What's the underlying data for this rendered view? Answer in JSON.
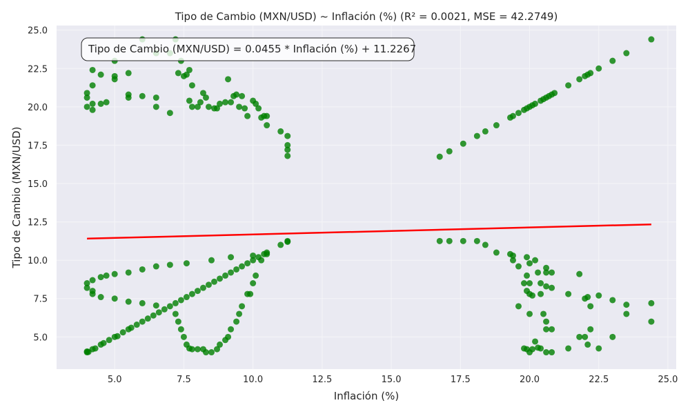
{
  "chart_data": {
    "type": "scatter",
    "title": "Tipo de Cambio (MXN/USD) ~ Inflación (%) (R² = 0.0021, MSE = 42.2749)",
    "xlabel": "Inflación (%)",
    "ylabel": "Tipo de Cambio (MXN/USD)",
    "xlim": [
      2.9,
      25.3
    ],
    "ylim": [
      2.9,
      25.3
    ],
    "xticks": [
      "5.0",
      "7.5",
      "10.0",
      "12.5",
      "15.0",
      "17.5",
      "20.0",
      "22.5",
      "25.0"
    ],
    "yticks": [
      "5.0",
      "7.5",
      "10.0",
      "12.5",
      "15.0",
      "17.5",
      "20.0",
      "22.5",
      "25.0"
    ],
    "grid": true,
    "annotation": "Tipo de Cambio (MXN/USD) = 0.0455 * Inflación (%) + 11.2267",
    "colors": {
      "points": "#008000",
      "fit_line": "#ff0000",
      "background": "#eaeaf2",
      "grid": "#f5f5f8"
    },
    "regression": {
      "slope": 0.0455,
      "intercept": 11.2267,
      "x_range": [
        4.0,
        24.4
      ]
    },
    "points": [
      [
        4.0,
        4.0
      ],
      [
        4.05,
        4.02
      ],
      [
        4.0,
        4.05
      ],
      [
        4.2,
        4.2
      ],
      [
        4.3,
        4.25
      ],
      [
        4.5,
        4.5
      ],
      [
        4.6,
        4.6
      ],
      [
        4.8,
        4.8
      ],
      [
        5.0,
        5.0
      ],
      [
        5.1,
        5.05
      ],
      [
        5.3,
        5.3
      ],
      [
        5.5,
        5.5
      ],
      [
        5.6,
        5.6
      ],
      [
        5.8,
        5.8
      ],
      [
        6.0,
        6.0
      ],
      [
        6.2,
        6.2
      ],
      [
        6.4,
        6.4
      ],
      [
        6.6,
        6.6
      ],
      [
        6.8,
        6.8
      ],
      [
        7.0,
        7.0
      ],
      [
        7.2,
        7.2
      ],
      [
        7.4,
        7.4
      ],
      [
        7.6,
        7.6
      ],
      [
        7.8,
        7.8
      ],
      [
        8.0,
        8.0
      ],
      [
        8.2,
        8.2
      ],
      [
        8.4,
        8.4
      ],
      [
        8.6,
        8.6
      ],
      [
        8.8,
        8.8
      ],
      [
        9.0,
        9.0
      ],
      [
        9.2,
        9.2
      ],
      [
        9.4,
        9.4
      ],
      [
        9.6,
        9.6
      ],
      [
        9.8,
        9.8
      ],
      [
        10.0,
        10.0
      ],
      [
        10.2,
        10.2
      ],
      [
        10.4,
        10.4
      ],
      [
        10.5,
        10.5
      ],
      [
        11.0,
        11.0
      ],
      [
        11.25,
        11.25
      ],
      [
        11.25,
        11.2
      ],
      [
        4.0,
        8.2
      ],
      [
        4.0,
        8.5
      ],
      [
        4.2,
        8.7
      ],
      [
        4.5,
        8.9
      ],
      [
        4.7,
        9.0
      ],
      [
        5.0,
        9.1
      ],
      [
        5.5,
        9.2
      ],
      [
        6.0,
        9.4
      ],
      [
        6.5,
        9.6
      ],
      [
        7.0,
        9.7
      ],
      [
        7.6,
        9.8
      ],
      [
        8.5,
        10.0
      ],
      [
        9.2,
        10.2
      ],
      [
        10.0,
        10.3
      ],
      [
        10.5,
        10.4
      ],
      [
        4.2,
        8.0
      ],
      [
        4.2,
        7.8
      ],
      [
        4.5,
        7.6
      ],
      [
        5.0,
        7.5
      ],
      [
        5.5,
        7.3
      ],
      [
        6.0,
        7.2
      ],
      [
        6.5,
        7.05
      ],
      [
        7.2,
        6.5
      ],
      [
        7.3,
        6.0
      ],
      [
        7.4,
        5.5
      ],
      [
        7.5,
        5.0
      ],
      [
        7.6,
        4.5
      ],
      [
        7.7,
        4.25
      ],
      [
        7.8,
        4.2
      ],
      [
        8.0,
        4.2
      ],
      [
        8.2,
        4.2
      ],
      [
        8.3,
        4.0
      ],
      [
        8.5,
        4.0
      ],
      [
        8.7,
        4.2
      ],
      [
        8.8,
        4.5
      ],
      [
        9.0,
        4.8
      ],
      [
        9.1,
        5.0
      ],
      [
        9.2,
        5.5
      ],
      [
        9.4,
        6.0
      ],
      [
        9.5,
        6.5
      ],
      [
        9.6,
        7.0
      ],
      [
        9.8,
        7.8
      ],
      [
        9.9,
        7.8
      ],
      [
        10.0,
        8.5
      ],
      [
        10.1,
        9.0
      ],
      [
        10.3,
        10.0
      ],
      [
        4.0,
        20.0
      ],
      [
        4.0,
        20.6
      ],
      [
        4.0,
        20.9
      ],
      [
        4.2,
        19.8
      ],
      [
        4.2,
        20.2
      ],
      [
        4.2,
        21.4
      ],
      [
        4.2,
        22.4
      ],
      [
        4.5,
        20.2
      ],
      [
        4.5,
        22.1
      ],
      [
        4.7,
        20.3
      ],
      [
        5.0,
        21.8
      ],
      [
        5.0,
        22.0
      ],
      [
        5.0,
        23.0
      ],
      [
        5.5,
        20.6
      ],
      [
        5.5,
        20.8
      ],
      [
        5.5,
        22.2
      ],
      [
        6.0,
        20.7
      ],
      [
        6.0,
        24.4
      ],
      [
        6.5,
        23.5
      ],
      [
        6.5,
        20.6
      ],
      [
        6.5,
        20.0
      ],
      [
        7.0,
        19.6
      ],
      [
        7.0,
        23.5
      ],
      [
        7.2,
        24.4
      ],
      [
        7.3,
        22.2
      ],
      [
        7.4,
        23.0
      ],
      [
        7.5,
        22.0
      ],
      [
        7.6,
        22.1
      ],
      [
        7.7,
        22.4
      ],
      [
        7.8,
        21.4
      ],
      [
        7.7,
        20.4
      ],
      [
        7.8,
        20.0
      ],
      [
        8.0,
        20.0
      ],
      [
        8.1,
        20.3
      ],
      [
        8.2,
        20.9
      ],
      [
        8.3,
        20.6
      ],
      [
        8.4,
        20.0
      ],
      [
        8.6,
        19.9
      ],
      [
        8.7,
        19.9
      ],
      [
        8.8,
        20.2
      ],
      [
        9.0,
        20.3
      ],
      [
        9.1,
        21.8
      ],
      [
        9.2,
        20.3
      ],
      [
        9.3,
        20.7
      ],
      [
        9.4,
        20.8
      ],
      [
        9.6,
        20.7
      ],
      [
        9.5,
        20.0
      ],
      [
        9.7,
        19.9
      ],
      [
        9.8,
        19.4
      ],
      [
        10.0,
        20.4
      ],
      [
        10.1,
        20.2
      ],
      [
        10.2,
        19.9
      ],
      [
        10.3,
        19.3
      ],
      [
        10.4,
        19.4
      ],
      [
        10.5,
        19.4
      ],
      [
        10.5,
        18.8
      ],
      [
        11.0,
        18.4
      ],
      [
        11.25,
        18.1
      ],
      [
        11.25,
        17.5
      ],
      [
        11.25,
        17.2
      ],
      [
        11.25,
        16.8
      ],
      [
        16.75,
        16.75
      ],
      [
        17.1,
        17.1
      ],
      [
        17.6,
        17.6
      ],
      [
        18.1,
        18.1
      ],
      [
        18.4,
        18.4
      ],
      [
        18.8,
        18.8
      ],
      [
        19.3,
        19.3
      ],
      [
        19.4,
        19.4
      ],
      [
        19.6,
        19.6
      ],
      [
        19.8,
        19.8
      ],
      [
        19.9,
        19.9
      ],
      [
        20.0,
        20.0
      ],
      [
        20.1,
        20.1
      ],
      [
        20.2,
        20.2
      ],
      [
        20.4,
        20.4
      ],
      [
        20.5,
        20.5
      ],
      [
        20.6,
        20.6
      ],
      [
        20.7,
        20.7
      ],
      [
        20.8,
        20.8
      ],
      [
        20.9,
        20.9
      ],
      [
        21.4,
        21.4
      ],
      [
        21.8,
        21.8
      ],
      [
        22.0,
        22.0
      ],
      [
        22.1,
        22.1
      ],
      [
        22.2,
        22.2
      ],
      [
        22.5,
        22.5
      ],
      [
        23.0,
        23.0
      ],
      [
        23.5,
        23.5
      ],
      [
        24.4,
        24.4
      ],
      [
        16.75,
        11.25
      ],
      [
        17.1,
        11.25
      ],
      [
        17.6,
        11.25
      ],
      [
        18.1,
        11.25
      ],
      [
        18.4,
        11.0
      ],
      [
        18.8,
        10.5
      ],
      [
        19.3,
        10.4
      ],
      [
        19.4,
        10.3
      ],
      [
        19.4,
        10.0
      ],
      [
        19.6,
        9.6
      ],
      [
        19.6,
        7.0
      ],
      [
        19.8,
        8.5
      ],
      [
        19.9,
        8.0
      ],
      [
        19.9,
        9.0
      ],
      [
        19.9,
        10.2
      ],
      [
        20.0,
        9.8
      ],
      [
        20.0,
        8.5
      ],
      [
        20.0,
        7.8
      ],
      [
        20.0,
        6.5
      ],
      [
        20.1,
        7.7
      ],
      [
        20.2,
        10.0
      ],
      [
        20.3,
        9.2
      ],
      [
        20.4,
        8.5
      ],
      [
        20.4,
        7.8
      ],
      [
        20.5,
        6.5
      ],
      [
        20.6,
        9.5
      ],
      [
        20.6,
        9.2
      ],
      [
        20.6,
        8.3
      ],
      [
        20.6,
        6.0
      ],
      [
        20.8,
        9.2
      ],
      [
        20.8,
        8.2
      ],
      [
        20.6,
        5.5
      ],
      [
        20.8,
        5.5
      ],
      [
        21.4,
        7.8
      ],
      [
        21.8,
        9.1
      ],
      [
        22.0,
        7.5
      ],
      [
        22.1,
        7.6
      ],
      [
        22.2,
        7.0
      ],
      [
        22.5,
        7.7
      ],
      [
        23.0,
        7.4
      ],
      [
        23.5,
        7.1
      ],
      [
        23.5,
        6.5
      ],
      [
        24.4,
        7.2
      ],
      [
        24.4,
        6.0
      ],
      [
        19.8,
        4.25
      ],
      [
        19.9,
        4.2
      ],
      [
        20.0,
        4.0
      ],
      [
        20.1,
        4.2
      ],
      [
        20.3,
        4.3
      ],
      [
        20.2,
        4.7
      ],
      [
        20.4,
        4.25
      ],
      [
        20.6,
        4.0
      ],
      [
        20.8,
        4.0
      ],
      [
        21.4,
        4.25
      ],
      [
        21.8,
        5.0
      ],
      [
        22.0,
        5.0
      ],
      [
        22.1,
        4.5
      ],
      [
        22.2,
        5.5
      ],
      [
        22.5,
        4.25
      ],
      [
        23.0,
        5.0
      ]
    ]
  }
}
